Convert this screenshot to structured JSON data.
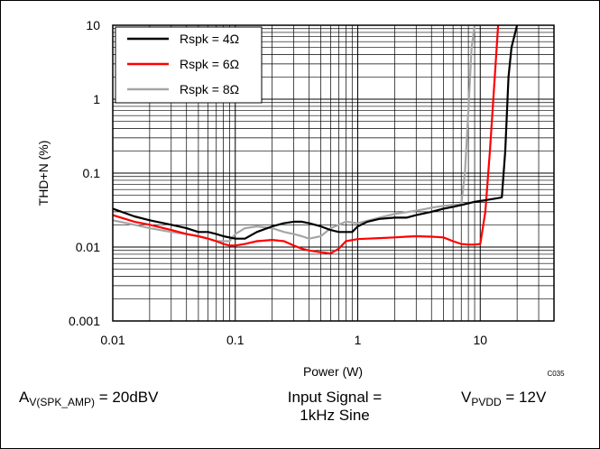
{
  "chart_data": {
    "type": "line",
    "title": "",
    "xlabel": "Power (W)",
    "ylabel": "THD+N (%)",
    "x_scale": "log",
    "y_scale": "log",
    "xlim": [
      0.01,
      40
    ],
    "ylim": [
      0.001,
      10
    ],
    "x_ticks": [
      0.01,
      0.1,
      1,
      10
    ],
    "x_tick_labels": [
      "0.01",
      "0.1",
      "1",
      "10"
    ],
    "y_ticks": [
      0.001,
      0.01,
      0.1,
      1,
      10
    ],
    "y_tick_labels": [
      "0.001",
      "0.01",
      "0.1",
      "1",
      "10"
    ],
    "grid": true,
    "legend_position": "top-left",
    "figure_code": "C035",
    "series": [
      {
        "name": "Rspk = 4Ω",
        "color": "#000000",
        "x": [
          0.01,
          0.015,
          0.02,
          0.03,
          0.04,
          0.05,
          0.06,
          0.07,
          0.08,
          0.1,
          0.12,
          0.15,
          0.2,
          0.25,
          0.3,
          0.35,
          0.4,
          0.5,
          0.6,
          0.7,
          0.8,
          0.9,
          1.0,
          1.2,
          1.5,
          2,
          2.5,
          3,
          4,
          5,
          6,
          7,
          8,
          9,
          10,
          11,
          12,
          13,
          14,
          15,
          16,
          17,
          18,
          20
        ],
        "values": [
          0.033,
          0.026,
          0.023,
          0.02,
          0.018,
          0.016,
          0.016,
          0.015,
          0.014,
          0.013,
          0.013,
          0.016,
          0.019,
          0.021,
          0.022,
          0.022,
          0.021,
          0.019,
          0.017,
          0.016,
          0.016,
          0.016,
          0.019,
          0.022,
          0.024,
          0.025,
          0.025,
          0.027,
          0.03,
          0.033,
          0.035,
          0.037,
          0.039,
          0.041,
          0.042,
          0.043,
          0.044,
          0.045,
          0.046,
          0.047,
          0.2,
          2.0,
          5.0,
          10
        ]
      },
      {
        "name": "Rspk = 6Ω",
        "color": "#ff0000",
        "x": [
          0.01,
          0.015,
          0.02,
          0.03,
          0.04,
          0.05,
          0.06,
          0.07,
          0.08,
          0.09,
          0.1,
          0.12,
          0.15,
          0.2,
          0.25,
          0.3,
          0.35,
          0.4,
          0.5,
          0.6,
          0.7,
          0.8,
          1.0,
          1.2,
          1.5,
          2,
          2.5,
          3,
          4,
          5,
          6,
          7,
          8,
          9,
          10,
          11,
          12,
          13,
          14
        ],
        "values": [
          0.027,
          0.022,
          0.02,
          0.017,
          0.015,
          0.014,
          0.013,
          0.012,
          0.011,
          0.0105,
          0.0105,
          0.011,
          0.012,
          0.0125,
          0.012,
          0.0105,
          0.0095,
          0.009,
          0.0085,
          0.0082,
          0.0095,
          0.012,
          0.0128,
          0.013,
          0.0132,
          0.0135,
          0.0138,
          0.014,
          0.0138,
          0.0135,
          0.012,
          0.011,
          0.0108,
          0.0108,
          0.011,
          0.03,
          0.2,
          1.5,
          10
        ]
      },
      {
        "name": "Rspk = 8Ω",
        "color": "#a6a6a6",
        "x": [
          0.01,
          0.015,
          0.02,
          0.03,
          0.04,
          0.05,
          0.06,
          0.07,
          0.08,
          0.09,
          0.1,
          0.12,
          0.15,
          0.2,
          0.25,
          0.3,
          0.35,
          0.4,
          0.5,
          0.6,
          0.7,
          0.8,
          1.0,
          1.5,
          2,
          3,
          4,
          5,
          6,
          7,
          7.5,
          8,
          8.5,
          9,
          10
        ],
        "values": [
          0.023,
          0.02,
          0.018,
          0.016,
          0.015,
          0.014,
          0.013,
          0.012,
          0.012,
          0.012,
          0.015,
          0.018,
          0.019,
          0.018,
          0.016,
          0.015,
          0.014,
          0.013,
          0.014,
          0.018,
          0.02,
          0.022,
          0.021,
          0.025,
          0.028,
          0.031,
          0.034,
          0.036,
          0.037,
          0.038,
          0.1,
          0.7,
          5.0,
          10,
          10
        ]
      }
    ]
  },
  "conditions": {
    "gain_label": "A",
    "gain_sub": "V(SPK_AMP)",
    "gain_value": " = 20dBV",
    "signal_line1": "Input Signal =",
    "signal_line2": "1kHz Sine",
    "supply_label": "V",
    "supply_sub": "PVDD",
    "supply_value": " = 12V"
  }
}
